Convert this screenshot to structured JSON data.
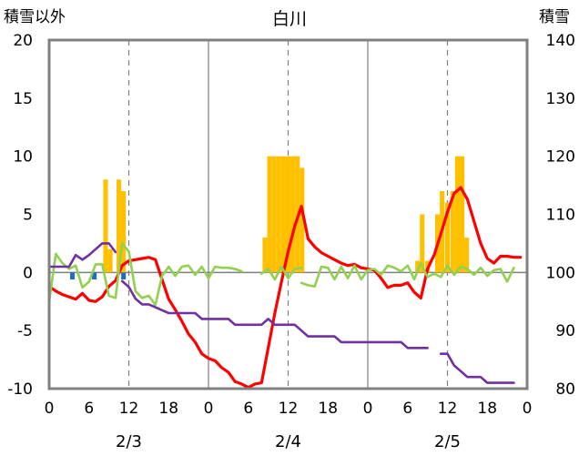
{
  "chart_data": {
    "type": "bar",
    "title": "白川",
    "left_axis": {
      "label": "積雪以外",
      "ylim": [
        -10,
        20
      ],
      "ticks": [
        20,
        15,
        10,
        5,
        0,
        -5,
        -10
      ]
    },
    "right_axis": {
      "label": "積雪",
      "ylim": [
        80,
        140
      ],
      "ticks": [
        140,
        130,
        120,
        110,
        100,
        90,
        80
      ]
    },
    "x_hours": [
      0,
      72
    ],
    "x_tick_labels": [
      {
        "h": 0,
        "text": "0"
      },
      {
        "h": 6,
        "text": "6"
      },
      {
        "h": 12,
        "text": "12"
      },
      {
        "h": 18,
        "text": "18"
      },
      {
        "h": 24,
        "text": "0"
      },
      {
        "h": 30,
        "text": "6"
      },
      {
        "h": 36,
        "text": "12"
      },
      {
        "h": 42,
        "text": "18"
      },
      {
        "h": 48,
        "text": "0"
      },
      {
        "h": 54,
        "text": "6"
      },
      {
        "h": 60,
        "text": "12"
      },
      {
        "h": 66,
        "text": "18"
      },
      {
        "h": 72,
        "text": "0"
      }
    ],
    "date_labels": [
      {
        "h": 12,
        "text": "2/3"
      },
      {
        "h": 36,
        "text": "2/4"
      },
      {
        "h": 60,
        "text": "2/5"
      }
    ],
    "day_dividers": [
      24,
      48
    ],
    "dashed_gridlines": [
      12,
      36,
      60
    ],
    "grid_y": 0,
    "series": [
      {
        "axis": "left",
        "kind": "bar",
        "color": "#FFC000",
        "points": [
          [
            8.5,
            8
          ],
          [
            9.2,
            2
          ],
          [
            10.5,
            8
          ],
          [
            11.2,
            7
          ],
          [
            32.5,
            3
          ],
          [
            33.2,
            10
          ],
          [
            33.9,
            10
          ],
          [
            34.6,
            10
          ],
          [
            35.3,
            10
          ],
          [
            36,
            10
          ],
          [
            36.7,
            10
          ],
          [
            37.4,
            10
          ],
          [
            38.1,
            9
          ],
          [
            55.5,
            1
          ],
          [
            56.2,
            5
          ],
          [
            57,
            1
          ],
          [
            58.5,
            5
          ],
          [
            59.2,
            7
          ],
          [
            60,
            6
          ],
          [
            60.8,
            7
          ],
          [
            61.5,
            10
          ],
          [
            62.2,
            10
          ],
          [
            62.9,
            3
          ]
        ]
      },
      {
        "axis": "left",
        "kind": "bar",
        "color": "#1F6FBF",
        "points": [
          [
            3.5,
            -0.6
          ],
          [
            6.8,
            -0.6
          ],
          [
            11.2,
            -0.6
          ]
        ]
      },
      {
        "axis": "left",
        "kind": "line",
        "color": "#FF0000",
        "points": [
          [
            0,
            -1.2
          ],
          [
            1,
            -1.6
          ],
          [
            2,
            -1.9
          ],
          [
            3,
            -2.1
          ],
          [
            4,
            -2.3
          ],
          [
            5,
            -1.8
          ],
          [
            6,
            -2.4
          ],
          [
            7,
            -2.5
          ],
          [
            8,
            -2.1
          ],
          [
            9,
            -1.2
          ],
          [
            10,
            -0.7
          ],
          [
            11,
            0.6
          ],
          [
            12,
            1.0
          ],
          [
            13,
            1.1
          ],
          [
            14,
            1.2
          ],
          [
            15,
            1.3
          ],
          [
            16,
            1.1
          ],
          [
            17,
            -0.6
          ],
          [
            18,
            -2.3
          ],
          [
            19,
            -3.2
          ],
          [
            20,
            -4.2
          ],
          [
            21,
            -5.3
          ],
          [
            22,
            -6.0
          ],
          [
            23,
            -7.0
          ],
          [
            24,
            -7.4
          ],
          [
            25,
            -7.6
          ],
          [
            26,
            -8.2
          ],
          [
            27,
            -8.6
          ],
          [
            28,
            -9.4
          ],
          [
            29,
            -9.6
          ],
          [
            30,
            -9.9
          ],
          [
            31,
            -9.6
          ],
          [
            32,
            -9.5
          ],
          [
            33,
            -6.5
          ],
          [
            34,
            -3.5
          ],
          [
            35,
            -0.8
          ],
          [
            36,
            1.8
          ],
          [
            37,
            4.0
          ],
          [
            38,
            5.7
          ],
          [
            39,
            2.9
          ],
          [
            40,
            2.2
          ],
          [
            41,
            1.7
          ],
          [
            42,
            1.4
          ],
          [
            43,
            1.1
          ],
          [
            44,
            0.8
          ],
          [
            45,
            0.6
          ],
          [
            46,
            0.7
          ],
          [
            47,
            0.4
          ],
          [
            48,
            0.3
          ],
          [
            49,
            0.2
          ],
          [
            50,
            -0.5
          ],
          [
            51,
            -1.3
          ],
          [
            52,
            -1.1
          ],
          [
            53,
            -1.1
          ],
          [
            54,
            -0.9
          ],
          [
            55,
            -1.7
          ],
          [
            56,
            -2.2
          ],
          [
            57,
            0.3
          ],
          [
            58,
            1.5
          ],
          [
            59,
            3.3
          ],
          [
            60,
            5.2
          ],
          [
            61,
            6.8
          ],
          [
            62,
            7.3
          ],
          [
            63,
            6.3
          ],
          [
            64,
            4.4
          ],
          [
            65,
            2.5
          ],
          [
            66,
            1.2
          ],
          [
            67,
            0.8
          ],
          [
            68,
            1.4
          ],
          [
            69,
            1.4
          ],
          [
            70,
            1.3
          ],
          [
            71,
            1.3
          ]
        ]
      },
      {
        "axis": "left",
        "kind": "line",
        "color": "#92D050",
        "points": [
          [
            0,
            -2.5
          ],
          [
            1,
            1.6
          ],
          [
            2,
            0.8
          ],
          [
            3,
            0.3
          ],
          [
            4,
            0.6
          ],
          [
            5,
            -1.3
          ],
          [
            6,
            -0.8
          ],
          [
            7,
            0.7
          ],
          [
            8,
            0.7
          ],
          [
            9,
            -2.0
          ],
          [
            10,
            -2.2
          ],
          [
            11,
            2.5
          ],
          [
            12,
            1.8
          ],
          [
            13,
            -1.6
          ],
          [
            14,
            -2.2
          ],
          [
            15,
            -2.0
          ],
          [
            16,
            -2.8
          ],
          [
            17,
            -0.3
          ],
          [
            18,
            0.5
          ],
          [
            19,
            -0.3
          ],
          [
            20,
            0.5
          ],
          [
            21,
            0.6
          ],
          [
            22,
            -0.2
          ],
          [
            23,
            0.5
          ],
          [
            24,
            -0.5
          ],
          [
            25,
            0.5
          ],
          [
            26,
            0.4
          ],
          [
            27,
            0.4
          ],
          [
            28,
            0.3
          ],
          [
            29,
            0.1
          ],
          null,
          [
            32,
            -0.1
          ],
          [
            33,
            0.3
          ],
          [
            34,
            -0.6
          ],
          [
            35,
            0.5
          ],
          [
            36,
            -0.5
          ],
          [
            37,
            0.3
          ],
          [
            38,
            0.4
          ],
          null,
          [
            38,
            -0.9
          ],
          [
            39,
            -1.1
          ],
          [
            40,
            -1.2
          ],
          [
            41,
            0.5
          ],
          [
            42,
            0.4
          ],
          [
            43,
            -0.6
          ],
          [
            44,
            0.5
          ],
          [
            45,
            -0.5
          ],
          [
            46,
            0.6
          ],
          [
            47,
            -0.6
          ],
          [
            48,
            0.2
          ],
          [
            49,
            0.3
          ],
          [
            50,
            -0.2
          ],
          [
            51,
            0.6
          ],
          [
            52,
            0.4
          ],
          [
            53,
            0.1
          ],
          [
            54,
            0.6
          ],
          [
            55,
            -0.6
          ],
          [
            56,
            0.8
          ],
          [
            57,
            -0.4
          ],
          [
            58,
            -0.1
          ],
          [
            59,
            -0.4
          ],
          [
            60,
            0.6
          ],
          [
            61,
            -0.2
          ],
          [
            62,
            0.5
          ],
          [
            63,
            0.3
          ],
          [
            64,
            -0.2
          ],
          [
            65,
            0.4
          ],
          [
            66,
            -0.3
          ],
          [
            67,
            0.2
          ],
          [
            68,
            0.3
          ],
          [
            69,
            -0.8
          ],
          [
            70,
            0.4
          ]
        ]
      },
      {
        "axis": "right",
        "kind": "line",
        "color": "#7030A0",
        "points": [
          [
            0,
            101
          ],
          [
            1,
            101
          ],
          [
            2,
            101
          ],
          [
            3,
            101
          ],
          [
            4,
            103
          ],
          [
            5,
            102.2
          ],
          [
            6,
            103
          ],
          [
            7,
            104
          ],
          [
            8,
            105
          ],
          [
            9,
            105
          ],
          [
            10,
            103.5
          ],
          null,
          [
            11,
            98.5
          ],
          [
            12,
            97.5
          ],
          [
            13,
            95.5
          ],
          [
            14,
            94.5
          ],
          [
            15,
            94.5
          ],
          [
            16,
            94
          ],
          [
            17,
            93.5
          ],
          [
            18,
            93
          ],
          [
            19,
            93
          ],
          [
            20,
            93
          ],
          [
            21,
            93
          ],
          [
            22,
            93
          ],
          [
            23,
            92
          ],
          [
            24,
            92
          ],
          [
            25,
            92
          ],
          [
            26,
            92
          ],
          [
            27,
            92
          ],
          [
            28,
            91
          ],
          [
            29,
            91
          ],
          [
            30,
            91
          ],
          [
            31,
            91
          ],
          [
            32,
            91
          ],
          [
            33,
            92
          ],
          [
            34,
            91
          ],
          [
            35,
            91
          ],
          [
            36,
            91
          ],
          [
            37,
            91
          ],
          [
            38,
            90
          ],
          [
            39,
            89
          ],
          [
            40,
            89
          ],
          [
            41,
            89
          ],
          [
            42,
            89
          ],
          [
            43,
            89
          ],
          [
            44,
            88
          ],
          [
            45,
            88
          ],
          [
            46,
            88
          ],
          [
            47,
            88
          ],
          [
            48,
            88
          ],
          [
            49,
            88
          ],
          [
            50,
            88
          ],
          [
            51,
            88
          ],
          [
            52,
            88
          ],
          [
            53,
            88
          ],
          [
            54,
            87
          ],
          [
            55,
            87
          ],
          [
            56,
            87
          ],
          [
            57,
            87
          ],
          null,
          [
            59,
            86
          ],
          [
            60,
            86
          ],
          [
            61,
            84
          ],
          [
            62,
            83
          ],
          [
            63,
            82
          ],
          [
            64,
            82
          ],
          [
            65,
            82
          ],
          [
            66,
            81
          ],
          [
            67,
            81
          ],
          [
            68,
            81
          ],
          [
            69,
            81
          ],
          [
            70,
            81
          ]
        ]
      }
    ]
  }
}
